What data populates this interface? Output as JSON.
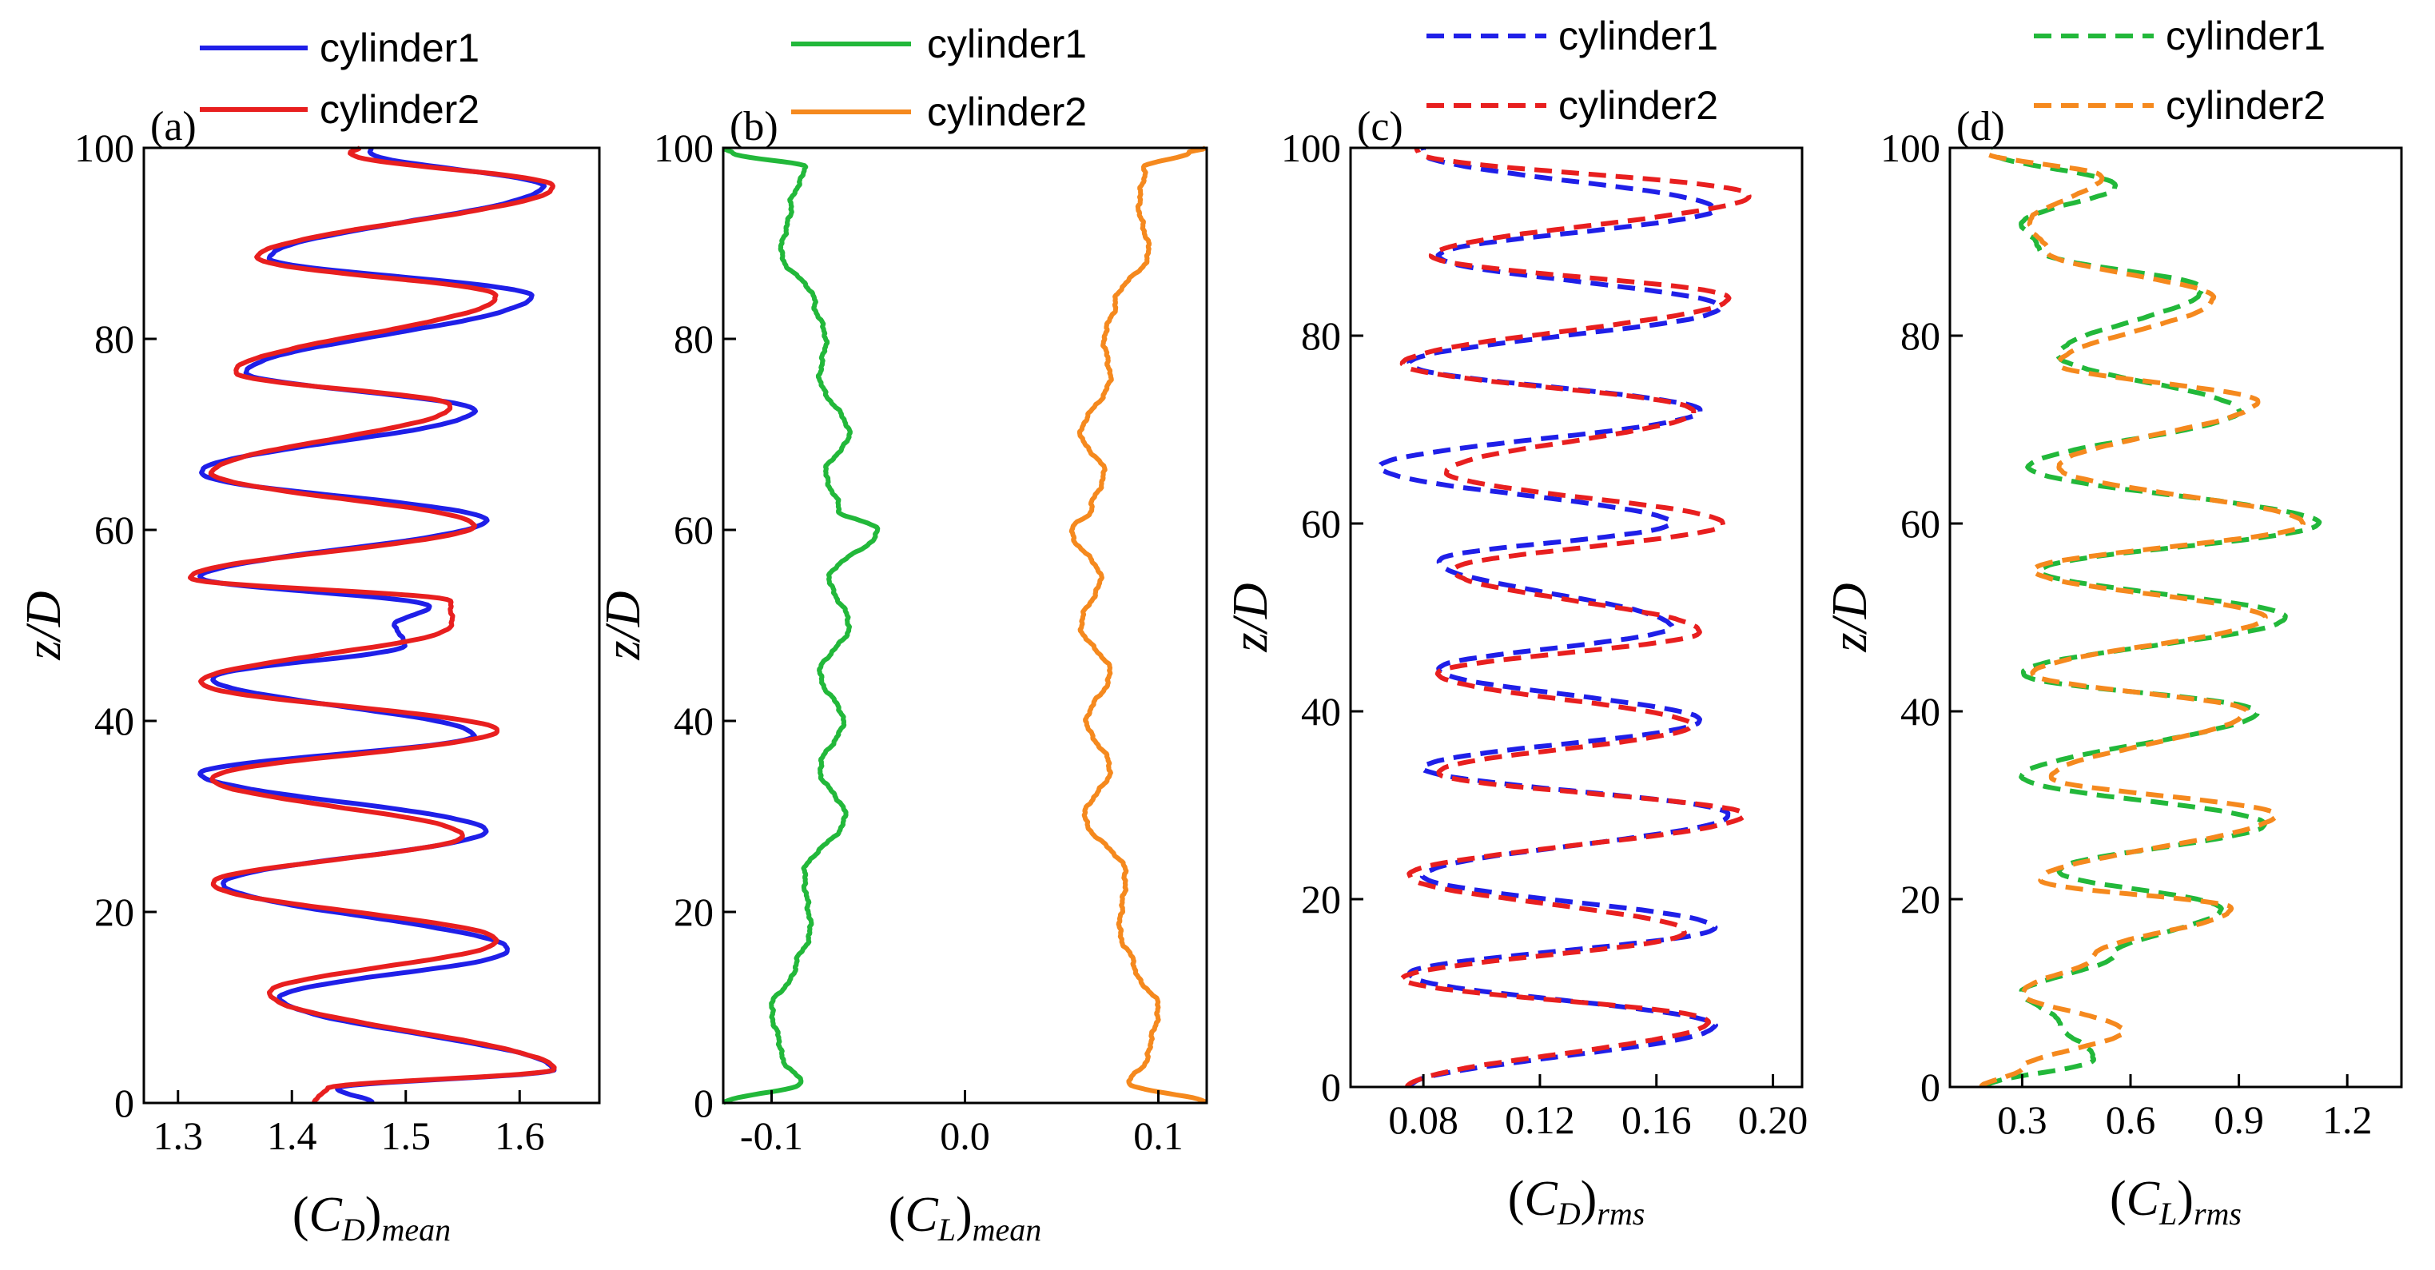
{
  "chart_data": [
    {
      "panel": "(a)",
      "type": "line",
      "xlabel": {
        "base": "(C",
        "sub1": "D",
        "close": ")",
        "sub2": "mean"
      },
      "ylabel": "z/D",
      "xlim": [
        1.27,
        1.67
      ],
      "ylim": [
        0,
        100
      ],
      "xticks": [
        1.3,
        1.4,
        1.5,
        1.6
      ],
      "xtick_labels": [
        "1.3",
        "1.4",
        "1.5",
        "1.6"
      ],
      "yticks": [
        0,
        20,
        40,
        60,
        80,
        100
      ],
      "ytick_labels": [
        "0",
        "20",
        "40",
        "60",
        "80",
        "100"
      ],
      "legend": "top-outside",
      "series": [
        {
          "name": "cylinder1",
          "color": "#1f1fe8",
          "dash": "solid",
          "peaks": [
            [
              0,
              1.47
            ],
            [
              1.5,
              1.44
            ],
            [
              3.5,
              1.63
            ],
            [
              11,
              1.39
            ],
            [
              16,
              1.59
            ],
            [
              23,
              1.34
            ],
            [
              28.5,
              1.57
            ],
            [
              34.5,
              1.32
            ],
            [
              38.5,
              1.56
            ],
            [
              44.5,
              1.33
            ],
            [
              48,
              1.5
            ],
            [
              50,
              1.49
            ],
            [
              52,
              1.52
            ],
            [
              55,
              1.32
            ],
            [
              61,
              1.57
            ],
            [
              66,
              1.32
            ],
            [
              72.5,
              1.56
            ],
            [
              76.5,
              1.36
            ],
            [
              84.5,
              1.61
            ],
            [
              88.5,
              1.38
            ],
            [
              96,
              1.62
            ],
            [
              99.5,
              1.47
            ],
            [
              100,
              1.47
            ]
          ]
        },
        {
          "name": "cylinder2",
          "color": "#e81f1f",
          "dash": "solid",
          "peaks": [
            [
              0,
              1.42
            ],
            [
              1.5,
              1.43
            ],
            [
              3.5,
              1.63
            ],
            [
              11.5,
              1.38
            ],
            [
              17,
              1.58
            ],
            [
              23,
              1.33
            ],
            [
              28,
              1.55
            ],
            [
              34,
              1.33
            ],
            [
              39,
              1.58
            ],
            [
              44,
              1.32
            ],
            [
              50,
              1.54
            ],
            [
              52.5,
              1.54
            ],
            [
              55,
              1.31
            ],
            [
              60.5,
              1.56
            ],
            [
              66,
              1.33
            ],
            [
              73,
              1.54
            ],
            [
              76.5,
              1.35
            ],
            [
              84.5,
              1.58
            ],
            [
              88.5,
              1.37
            ],
            [
              96,
              1.63
            ],
            [
              99.5,
              1.45
            ],
            [
              100,
              1.46
            ]
          ]
        }
      ]
    },
    {
      "panel": "(b)",
      "type": "line",
      "xlabel": {
        "base": "(C",
        "sub1": "L",
        "close": ")",
        "sub2": "mean"
      },
      "ylabel": "z/D",
      "xlim": [
        -0.125,
        0.125
      ],
      "ylim": [
        0,
        100
      ],
      "xticks": [
        -0.1,
        0.0,
        0.1
      ],
      "xtick_labels": [
        "-0.1",
        "0.0",
        "0.1"
      ],
      "yticks": [
        0,
        20,
        40,
        60,
        80,
        100
      ],
      "ytick_labels": [
        "0",
        "20",
        "40",
        "60",
        "80",
        "100"
      ],
      "legend": "top-outside",
      "series": [
        {
          "name": "cylinder1",
          "color": "#22b83a",
          "dash": "solid",
          "peaks": [
            [
              0,
              -0.125
            ],
            [
              2,
              -0.085
            ],
            [
              5,
              -0.095
            ],
            [
              10,
              -0.1
            ],
            [
              14,
              -0.088
            ],
            [
              18,
              -0.08
            ],
            [
              24,
              -0.083
            ],
            [
              30,
              -0.062
            ],
            [
              35,
              -0.075
            ],
            [
              40,
              -0.063
            ],
            [
              45,
              -0.075
            ],
            [
              50,
              -0.06
            ],
            [
              55,
              -0.07
            ],
            [
              60,
              -0.045
            ],
            [
              62,
              -0.065
            ],
            [
              66,
              -0.072
            ],
            [
              70,
              -0.06
            ],
            [
              76,
              -0.075
            ],
            [
              80,
              -0.072
            ],
            [
              84,
              -0.078
            ],
            [
              89,
              -0.095
            ],
            [
              94,
              -0.09
            ],
            [
              98,
              -0.083
            ],
            [
              99.5,
              -0.12
            ],
            [
              100,
              -0.125
            ]
          ]
        },
        {
          "name": "cylinder2",
          "color": "#f5891e",
          "dash": "solid",
          "peaks": [
            [
              0,
              0.125
            ],
            [
              2,
              0.085
            ],
            [
              5,
              0.095
            ],
            [
              10,
              0.1
            ],
            [
              14,
              0.088
            ],
            [
              18,
              0.08
            ],
            [
              24,
              0.083
            ],
            [
              30,
              0.062
            ],
            [
              35,
              0.075
            ],
            [
              40,
              0.063
            ],
            [
              45,
              0.075
            ],
            [
              50,
              0.06
            ],
            [
              55,
              0.07
            ],
            [
              60,
              0.055
            ],
            [
              62,
              0.065
            ],
            [
              66,
              0.072
            ],
            [
              70,
              0.06
            ],
            [
              76,
              0.075
            ],
            [
              80,
              0.072
            ],
            [
              84,
              0.078
            ],
            [
              89,
              0.095
            ],
            [
              94,
              0.09
            ],
            [
              98,
              0.093
            ],
            [
              99.5,
              0.115
            ],
            [
              100,
              0.125
            ]
          ]
        }
      ]
    },
    {
      "panel": "(c)",
      "type": "line",
      "xlabel": {
        "base": "(C",
        "sub1": "D",
        "close": ")",
        "sub2": "rms"
      },
      "ylabel": "z/D",
      "xlim": [
        0.055,
        0.21
      ],
      "ylim": [
        0,
        100
      ],
      "xticks": [
        0.08,
        0.12,
        0.16,
        0.2
      ],
      "xtick_labels": [
        "0.08",
        "0.12",
        "0.16",
        "0.20"
      ],
      "yticks": [
        0,
        20,
        40,
        60,
        80,
        100
      ],
      "ytick_labels": [
        "0",
        "20",
        "40",
        "60",
        "80",
        "100"
      ],
      "legend": "top-outside",
      "series": [
        {
          "name": "cylinder1",
          "color": "#1f1fe8",
          "dash": "dashed",
          "peaks": [
            [
              0,
              0.075
            ],
            [
              6.5,
              0.18
            ],
            [
              12,
              0.075
            ],
            [
              17,
              0.18
            ],
            [
              22.5,
              0.08
            ],
            [
              29,
              0.185
            ],
            [
              34,
              0.08
            ],
            [
              39,
              0.175
            ],
            [
              44.5,
              0.085
            ],
            [
              49,
              0.165
            ],
            [
              56,
              0.085
            ],
            [
              60,
              0.165
            ],
            [
              66,
              0.065
            ],
            [
              72,
              0.175
            ],
            [
              77,
              0.075
            ],
            [
              83,
              0.182
            ],
            [
              88.5,
              0.085
            ],
            [
              93.5,
              0.18
            ],
            [
              99.5,
              0.08
            ],
            [
              100,
              0.08
            ]
          ]
        },
        {
          "name": "cylinder2",
          "color": "#e81f1f",
          "dash": "dashed",
          "peaks": [
            [
              0,
              0.075
            ],
            [
              7,
              0.178
            ],
            [
              11.5,
              0.073
            ],
            [
              16.5,
              0.17
            ],
            [
              22.5,
              0.075
            ],
            [
              29,
              0.19
            ],
            [
              33.5,
              0.085
            ],
            [
              38.5,
              0.172
            ],
            [
              44,
              0.085
            ],
            [
              48.5,
              0.175
            ],
            [
              55,
              0.09
            ],
            [
              60,
              0.183
            ],
            [
              65.5,
              0.088
            ],
            [
              72,
              0.173
            ],
            [
              77,
              0.073
            ],
            [
              84,
              0.185
            ],
            [
              88.5,
              0.083
            ],
            [
              95,
              0.192
            ],
            [
              99.5,
              0.078
            ],
            [
              100,
              0.078
            ]
          ]
        }
      ]
    },
    {
      "panel": "(d)",
      "type": "line",
      "xlabel": {
        "base": "(C",
        "sub1": "L",
        "close": ")",
        "sub2": "rms"
      },
      "ylabel": "z/D",
      "xlim": [
        0.1,
        1.35
      ],
      "ylim": [
        0,
        100
      ],
      "xticks": [
        0.3,
        0.6,
        0.9,
        1.2
      ],
      "xtick_labels": [
        "0.3",
        "0.6",
        "0.9",
        "1.2"
      ],
      "yticks": [
        0,
        20,
        40,
        60,
        80,
        100
      ],
      "ytick_labels": [
        "0",
        "20",
        "40",
        "60",
        "80",
        "100"
      ],
      "legend": "top-outside",
      "series": [
        {
          "name": "cylinder1",
          "color": "#22b83a",
          "dash": "dashed",
          "peaks": [
            [
              0,
              0.2
            ],
            [
              3,
              0.5
            ],
            [
              7,
              0.4
            ],
            [
              10,
              0.3
            ],
            [
              14,
              0.55
            ],
            [
              19,
              0.85
            ],
            [
              23,
              0.4
            ],
            [
              28,
              0.97
            ],
            [
              33,
              0.3
            ],
            [
              40,
              0.95
            ],
            [
              44,
              0.3
            ],
            [
              50,
              1.03
            ],
            [
              55,
              0.35
            ],
            [
              60,
              1.12
            ],
            [
              66,
              0.32
            ],
            [
              72,
              0.9
            ],
            [
              78,
              0.4
            ],
            [
              85,
              0.8
            ],
            [
              89,
              0.35
            ],
            [
              92,
              0.3
            ],
            [
              96,
              0.56
            ],
            [
              99.5,
              0.22
            ],
            [
              100,
              0.22
            ]
          ]
        },
        {
          "name": "cylinder2",
          "color": "#f5891e",
          "dash": "dashed",
          "peaks": [
            [
              0,
              0.19
            ],
            [
              2,
              0.3
            ],
            [
              6,
              0.58
            ],
            [
              10,
              0.3
            ],
            [
              14,
              0.5
            ],
            [
              19,
              0.88
            ],
            [
              22,
              0.35
            ],
            [
              29,
              1.0
            ],
            [
              33,
              0.38
            ],
            [
              40,
              0.92
            ],
            [
              44,
              0.33
            ],
            [
              50,
              0.97
            ],
            [
              55,
              0.33
            ],
            [
              60,
              1.08
            ],
            [
              66,
              0.4
            ],
            [
              73,
              0.95
            ],
            [
              77,
              0.4
            ],
            [
              84,
              0.83
            ],
            [
              89,
              0.37
            ],
            [
              92,
              0.32
            ],
            [
              97,
              0.52
            ],
            [
              99.5,
              0.2
            ],
            [
              100,
              0.2
            ]
          ]
        }
      ]
    }
  ]
}
